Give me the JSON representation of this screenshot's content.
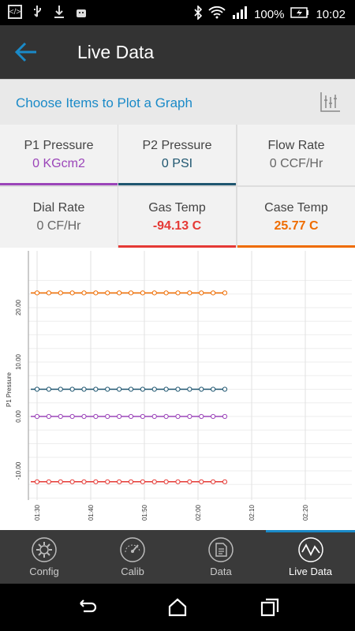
{
  "status": {
    "battery": "100%",
    "time": "10:02"
  },
  "appbar": {
    "title": "Live Data"
  },
  "choose": {
    "text": "Choose Items to Plot a Graph"
  },
  "items": [
    {
      "label": "P1 Pressure",
      "value": "0 KGcm2",
      "color": "#9b45b9",
      "underline": "#9b45b9"
    },
    {
      "label": "P2 Pressure",
      "value": "0 PSI",
      "color": "#1f5670",
      "underline": "#1f5670"
    },
    {
      "label": "Flow Rate",
      "value": "0 CCF/Hr",
      "color": "#666666",
      "underline": ""
    },
    {
      "label": "Dial Rate",
      "value": "0 CF/Hr",
      "color": "#666666",
      "underline": ""
    },
    {
      "label": "Gas Temp",
      "value": "-94.13 C",
      "color": "#e53935",
      "underline": "#e53935"
    },
    {
      "label": "Case Temp",
      "value": "25.77 C",
      "color": "#ef6c00",
      "underline": "#ef6c00"
    }
  ],
  "chart_data": {
    "type": "line",
    "ylabel": "P1 Pressure",
    "yticks": [
      "20.00",
      "10.00",
      "0.00",
      "-10.00"
    ],
    "xticks": [
      "01:30",
      "01:40",
      "01:50",
      "02:00",
      "02:10",
      "02:20"
    ],
    "series": [
      {
        "color": "#ef6c00",
        "value": 22.7
      },
      {
        "color": "#1f5670",
        "value": 5.0
      },
      {
        "color": "#9b45b9",
        "value": 0.0
      },
      {
        "color": "#e53935",
        "value": -12.0
      }
    ],
    "x_start": "01:30",
    "x_end": "02:05",
    "points": 17
  },
  "tabs": [
    {
      "label": "Config",
      "icon": "gear-icon"
    },
    {
      "label": "Calib",
      "icon": "gauge-icon"
    },
    {
      "label": "Data",
      "icon": "document-icon"
    },
    {
      "label": "Live Data",
      "icon": "wave-icon"
    }
  ]
}
